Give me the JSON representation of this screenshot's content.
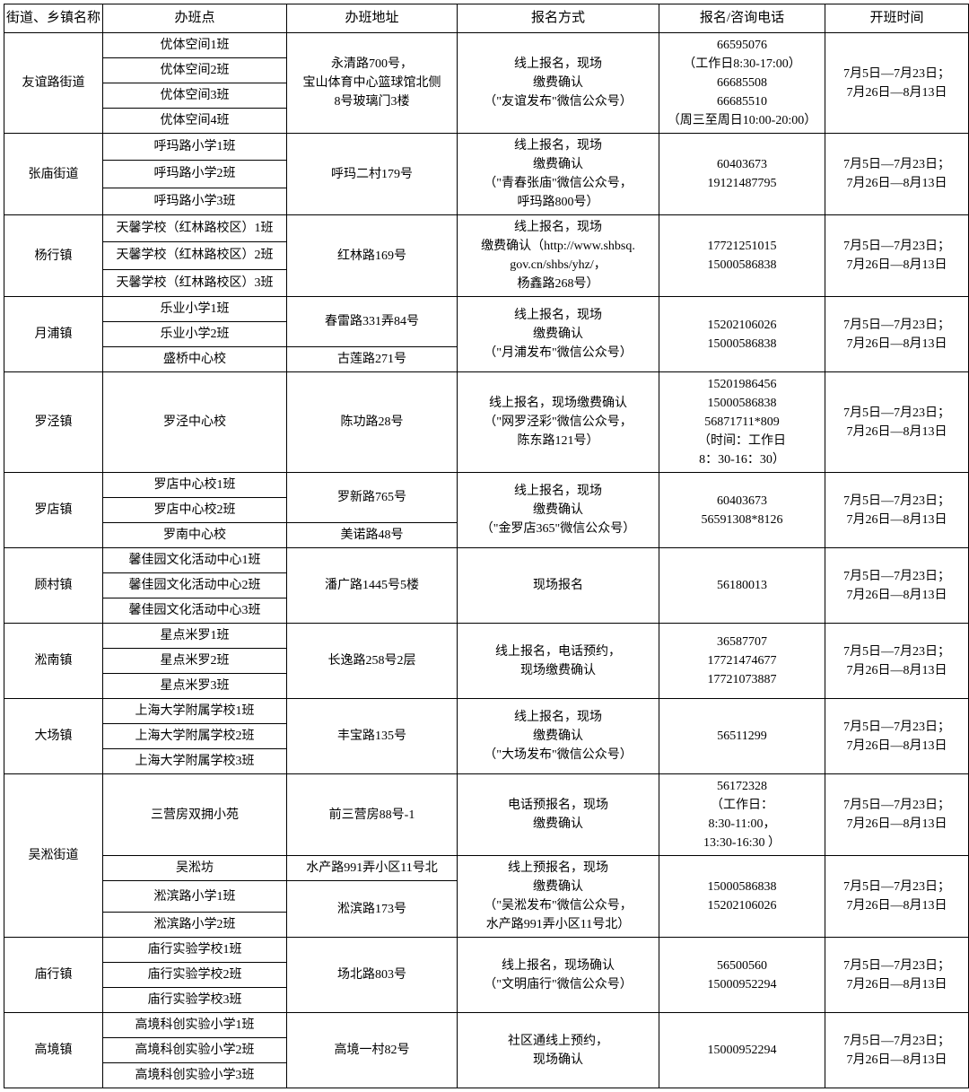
{
  "headers": [
    "街道、乡镇名称",
    "办班点",
    "办班地址",
    "报名方式",
    "报名/咨询电话",
    "开班时间"
  ],
  "colClasses": [
    "c0",
    "c1",
    "c2",
    "c3",
    "c4",
    "c5"
  ],
  "cells": [
    [
      {
        "t": "友谊路街道",
        "rs": 4
      },
      {
        "t": "优体空间1班"
      },
      {
        "t": "永清路700号，<br>宝山体育中心篮球馆北侧<br>8号玻璃门3楼",
        "rs": 4
      },
      {
        "t": "线上报名，现场<br>缴费确认<br>（\"友谊发布\"微信公众号）",
        "rs": 4
      },
      {
        "t": "66595076<br>（工作日8:30-17:00）<br>66685508<br>66685510<br>（周三至周日10:00-20:00）",
        "rs": 4
      },
      {
        "t": "7月5日—7月23日；<br>7月26日—8月13日",
        "rs": 4
      }
    ],
    [
      {
        "t": "优体空间2班"
      }
    ],
    [
      {
        "t": "优体空间3班"
      }
    ],
    [
      {
        "t": "优体空间4班"
      }
    ],
    [
      {
        "t": "张庙街道",
        "rs": 3
      },
      {
        "t": "呼玛路小学1班"
      },
      {
        "t": "呼玛二村179号",
        "rs": 3
      },
      {
        "t": "线上报名，现场<br>缴费确认<br>（\"青春张庙\"微信公众号，<br>呼玛路800号）",
        "rs": 3
      },
      {
        "t": "60403673<br>19121487795",
        "rs": 3
      },
      {
        "t": "7月5日—7月23日；<br>7月26日—8月13日",
        "rs": 3
      }
    ],
    [
      {
        "t": "呼玛路小学2班"
      }
    ],
    [
      {
        "t": "呼玛路小学3班"
      }
    ],
    [
      {
        "t": "杨行镇",
        "rs": 3
      },
      {
        "t": "天馨学校（红林路校区）1班"
      },
      {
        "t": "红林路169号",
        "rs": 3
      },
      {
        "t": "线上报名，现场<br>缴费确认（http://www.shbsq.<br>gov.cn/shbs/yhz/，<br>杨鑫路268号）",
        "rs": 3
      },
      {
        "t": "17721251015<br>15000586838",
        "rs": 3
      },
      {
        "t": "7月5日—7月23日；<br>7月26日—8月13日",
        "rs": 3
      }
    ],
    [
      {
        "t": "天馨学校（红林路校区）2班"
      }
    ],
    [
      {
        "t": "天馨学校（红林路校区）3班"
      }
    ],
    [
      {
        "t": "月浦镇",
        "rs": 3
      },
      {
        "t": "乐业小学1班"
      },
      {
        "t": "春雷路331弄84号",
        "rs": 2
      },
      {
        "t": "线上报名，现场<br>缴费确认<br>（\"月浦发布\"微信公众号）",
        "rs": 3
      },
      {
        "t": "15202106026<br>15000586838",
        "rs": 3
      },
      {
        "t": "7月5日—7月23日；<br>7月26日—8月13日",
        "rs": 3
      }
    ],
    [
      {
        "t": "乐业小学2班"
      }
    ],
    [
      {
        "t": "盛桥中心校"
      },
      {
        "t": "古莲路271号"
      }
    ],
    [
      {
        "t": "罗泾镇"
      },
      {
        "t": "罗泾中心校"
      },
      {
        "t": "陈功路28号"
      },
      {
        "t": "线上报名，现场缴费确认<br>（\"网罗泾彩\"微信公众号，<br>陈东路121号）"
      },
      {
        "t": "15201986456<br>15000586838<br>56871711*809<br>（时间：工作日<br>8：30-16：30）"
      },
      {
        "t": "7月5日—7月23日；<br>7月26日—8月13日"
      }
    ],
    [
      {
        "t": "罗店镇",
        "rs": 3
      },
      {
        "t": "罗店中心校1班"
      },
      {
        "t": "罗新路765号",
        "rs": 2
      },
      {
        "t": "线上报名，现场<br>缴费确认<br>（\"金罗店365\"微信公众号）",
        "rs": 3
      },
      {
        "t": "60403673<br>56591308*8126",
        "rs": 3
      },
      {
        "t": "7月5日—7月23日；<br>7月26日—8月13日",
        "rs": 3
      }
    ],
    [
      {
        "t": "罗店中心校2班"
      }
    ],
    [
      {
        "t": "罗南中心校"
      },
      {
        "t": "美诺路48号"
      }
    ],
    [
      {
        "t": "顾村镇",
        "rs": 3
      },
      {
        "t": "馨佳园文化活动中心1班"
      },
      {
        "t": "潘广路1445号5楼",
        "rs": 3
      },
      {
        "t": "现场报名",
        "rs": 3
      },
      {
        "t": "56180013",
        "rs": 3
      },
      {
        "t": "7月5日—7月23日；<br>7月26日—8月13日",
        "rs": 3
      }
    ],
    [
      {
        "t": "馨佳园文化活动中心2班"
      }
    ],
    [
      {
        "t": "馨佳园文化活动中心3班"
      }
    ],
    [
      {
        "t": "淞南镇",
        "rs": 3
      },
      {
        "t": "星点米罗1班"
      },
      {
        "t": "长逸路258号2层",
        "rs": 3
      },
      {
        "t": "线上报名，电话预约，<br>现场缴费确认",
        "rs": 3
      },
      {
        "t": "36587707<br>17721474677<br>17721073887",
        "rs": 3
      },
      {
        "t": "7月5日—7月23日；<br>7月26日—8月13日",
        "rs": 3
      }
    ],
    [
      {
        "t": "星点米罗2班"
      }
    ],
    [
      {
        "t": "星点米罗3班"
      }
    ],
    [
      {
        "t": "大场镇",
        "rs": 3
      },
      {
        "t": "上海大学附属学校1班"
      },
      {
        "t": "丰宝路135号",
        "rs": 3
      },
      {
        "t": "线上报名，现场<br>缴费确认<br>（\"大场发布\"微信公众号）",
        "rs": 3
      },
      {
        "t": "56511299",
        "rs": 3
      },
      {
        "t": "7月5日—7月23日；<br>7月26日—8月13日",
        "rs": 3
      }
    ],
    [
      {
        "t": "上海大学附属学校2班"
      }
    ],
    [
      {
        "t": "上海大学附属学校3班"
      }
    ],
    [
      {
        "t": "吴淞街道",
        "rs": 4
      },
      {
        "t": "三营房双拥小苑"
      },
      {
        "t": "前三营房88号-1"
      },
      {
        "t": "电话预报名，现场<br>缴费确认"
      },
      {
        "t": "56172328<br>（工作日：<br>8:30-11:00，<br>13:30-16:30 ）"
      },
      {
        "t": "7月5日—7月23日；<br>7月26日—8月13日"
      }
    ],
    [
      {
        "t": "吴淞坊"
      },
      {
        "t": "水产路991弄小区11号北"
      },
      {
        "t": "线上预报名，现场<br>缴费确认<br>（\"吴淞发布\"微信公众号，<br>水产路991弄小区11号北）",
        "rs": 3
      },
      {
        "t": "15000586838<br>15202106026",
        "rs": 3
      },
      {
        "t": "7月5日—7月23日；<br>7月26日—8月13日",
        "rs": 3
      }
    ],
    [
      {
        "t": "淞滨路小学1班"
      },
      {
        "t": "淞滨路173号",
        "rs": 2
      }
    ],
    [
      {
        "t": "淞滨路小学2班"
      }
    ],
    [
      {
        "t": "庙行镇",
        "rs": 3
      },
      {
        "t": "庙行实验学校1班"
      },
      {
        "t": "场北路803号",
        "rs": 3
      },
      {
        "t": "线上报名，现场确认<br>（\"文明庙行\"微信公众号）",
        "rs": 3
      },
      {
        "t": "56500560<br>15000952294",
        "rs": 3
      },
      {
        "t": "7月5日—7月23日；<br>7月26日—8月13日",
        "rs": 3
      }
    ],
    [
      {
        "t": "庙行实验学校2班"
      }
    ],
    [
      {
        "t": "庙行实验学校3班"
      }
    ],
    [
      {
        "t": "高境镇",
        "rs": 3
      },
      {
        "t": "高境科创实验小学1班"
      },
      {
        "t": "高境一村82号",
        "rs": 3
      },
      {
        "t": "社区通线上预约，<br>现场确认",
        "rs": 3
      },
      {
        "t": "15000952294",
        "rs": 3
      },
      {
        "t": "7月5日—7月23日；<br>7月26日—8月13日",
        "rs": 3
      }
    ],
    [
      {
        "t": "高境科创实验小学2班"
      }
    ],
    [
      {
        "t": "高境科创实验小学3班"
      }
    ]
  ]
}
